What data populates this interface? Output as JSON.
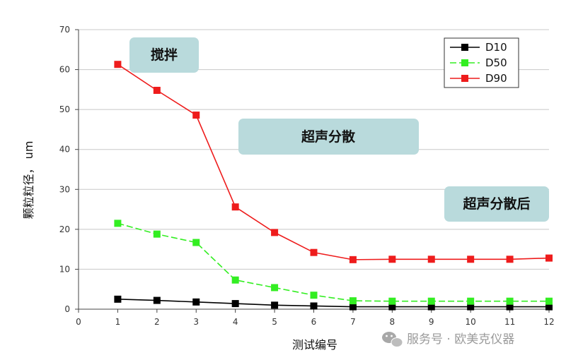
{
  "chart_data": {
    "type": "line",
    "xlabel": "测试编号",
    "ylabel": "颗粒粒径， um",
    "xlim": [
      0,
      12
    ],
    "ylim": [
      0,
      70
    ],
    "xticks": [
      0,
      1,
      2,
      3,
      4,
      5,
      6,
      7,
      8,
      9,
      10,
      11,
      12
    ],
    "yticks": [
      0,
      10,
      20,
      30,
      40,
      50,
      60,
      70
    ],
    "grid": true,
    "legend_position": "top-right",
    "x": [
      1,
      2,
      3,
      4,
      5,
      6,
      7,
      8,
      9,
      10,
      11,
      12
    ],
    "series": [
      {
        "name": "D10",
        "color": "#000000",
        "line_style": "solid",
        "values": [
          2.5,
          2.2,
          1.8,
          1.4,
          1.0,
          0.8,
          0.6,
          0.6,
          0.6,
          0.6,
          0.6,
          0.6
        ]
      },
      {
        "name": "D50",
        "color": "#33ee22",
        "line_style": "dashed",
        "values": [
          21.5,
          18.8,
          16.7,
          7.3,
          5.4,
          3.5,
          2.1,
          2.0,
          2.0,
          2.0,
          2.0,
          2.0
        ]
      },
      {
        "name": "D90",
        "color": "#ee1c1c",
        "line_style": "solid",
        "values": [
          61.3,
          54.8,
          48.6,
          25.6,
          19.2,
          14.2,
          12.4,
          12.5,
          12.5,
          12.5,
          12.5,
          12.8
        ]
      }
    ],
    "annotations": [
      {
        "text": "搅拌"
      },
      {
        "text": "超声分散"
      },
      {
        "text": "超声分散后"
      }
    ],
    "annotation_fill": "#b9dadc"
  },
  "watermark": {
    "text": "服务号 · 欧美克仪器",
    "icon": "wechat-icon"
  }
}
